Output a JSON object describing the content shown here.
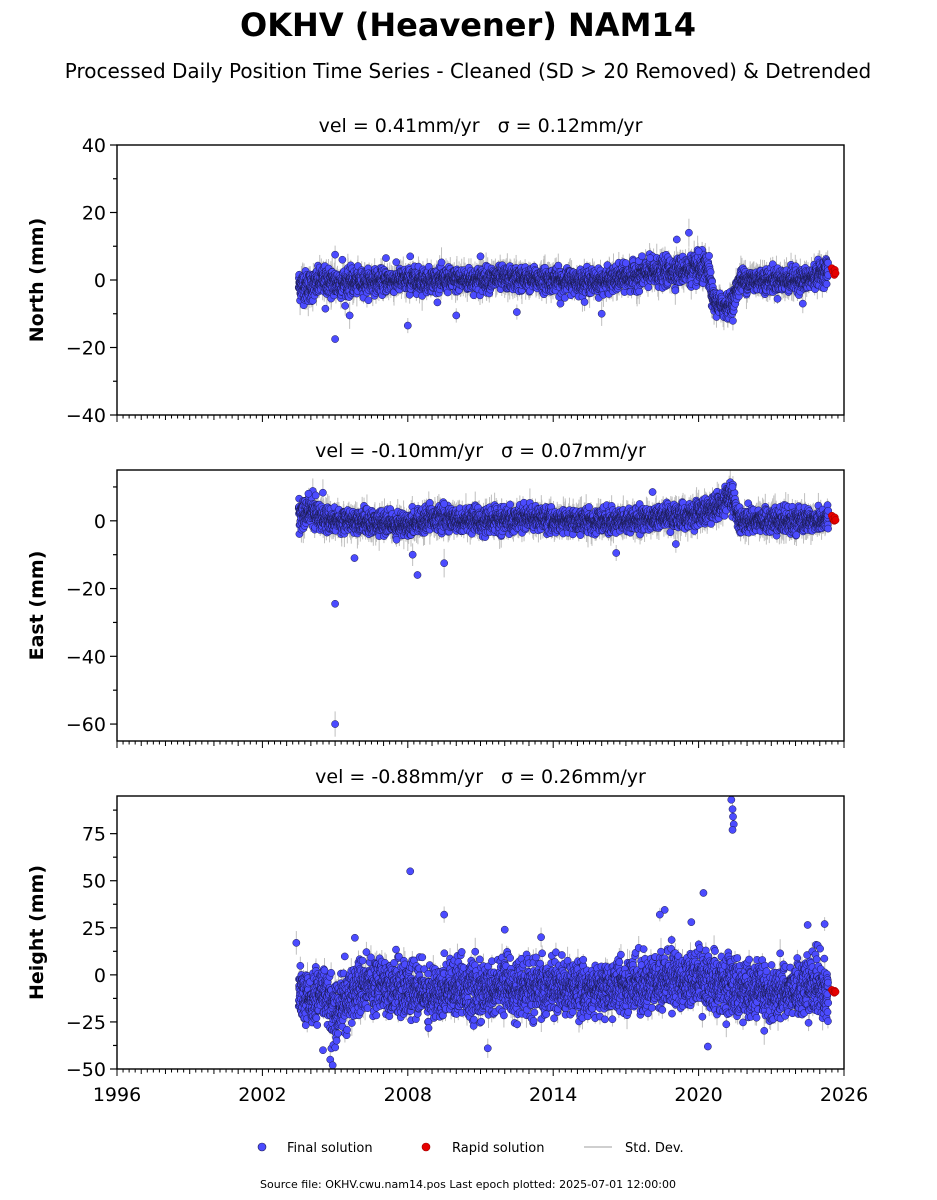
{
  "chart_data": {
    "type": "scatter",
    "title": "OKHV (Heavener) NAM14",
    "subtitle": "Processed Daily Position Time Series - Cleaned (SD > 20 Removed) & Detrended",
    "x_ticks": [
      1996,
      2002,
      2008,
      2014,
      2020,
      2026
    ],
    "xlim": [
      1996,
      2026
    ],
    "panels": [
      {
        "ylabel": "North (mm)",
        "vel_text": "vel = 0.41mm/yr",
        "sigma_text": "σ = 0.12mm/yr",
        "ylim": [
          -40,
          40
        ],
        "y_ticks": [
          -40,
          -20,
          0,
          20,
          40
        ],
        "y_tick_labels": [
          "−40",
          "−20",
          "0",
          "20",
          "40"
        ],
        "band": [
          [
            2003.5,
            -1.5,
            4
          ],
          [
            2004.0,
            -2,
            4
          ],
          [
            2004.5,
            0,
            3.5
          ],
          [
            2005.0,
            -1,
            4
          ],
          [
            2006.0,
            -0.5,
            3
          ],
          [
            2008.0,
            0,
            3
          ],
          [
            2010.0,
            0,
            3
          ],
          [
            2012.0,
            0.5,
            3
          ],
          [
            2014.0,
            0,
            3
          ],
          [
            2016.0,
            -0.5,
            3
          ],
          [
            2018.0,
            2,
            3.5
          ],
          [
            2019.5,
            3,
            3.5
          ],
          [
            2020.4,
            3,
            4
          ],
          [
            2020.6,
            -6,
            3
          ],
          [
            2021.0,
            -8,
            3
          ],
          [
            2021.4,
            -7,
            3
          ],
          [
            2021.7,
            0,
            3
          ],
          [
            2023.0,
            0,
            3
          ],
          [
            2024.5,
            0,
            3
          ],
          [
            2025.0,
            2,
            3
          ],
          [
            2025.35,
            3,
            3
          ]
        ],
        "outliers": [
          [
            2005.0,
            -17.5
          ],
          [
            2005.0,
            7.5
          ],
          [
            2005.3,
            6
          ],
          [
            2005.6,
            -10.5
          ],
          [
            2007.1,
            6.5
          ],
          [
            2008.0,
            -13.5
          ],
          [
            2008.1,
            7
          ],
          [
            2010.0,
            -10.5
          ],
          [
            2011.0,
            7
          ],
          [
            2012.5,
            -9.5
          ],
          [
            2014.3,
            -7
          ],
          [
            2016.0,
            -10
          ],
          [
            2017.0,
            5
          ],
          [
            2018.0,
            6.5
          ],
          [
            2019.1,
            12
          ],
          [
            2019.6,
            14
          ],
          [
            2020.0,
            8.5
          ],
          [
            2024.3,
            -7
          ],
          [
            2004.6,
            -8.5
          ]
        ],
        "rapid": [
          [
            2025.5,
            3.5
          ],
          [
            2025.55,
            2.5
          ],
          [
            2025.6,
            1.5
          ],
          [
            2025.62,
            3
          ],
          [
            2025.65,
            2
          ]
        ]
      },
      {
        "ylabel": "East (mm)",
        "vel_text": "vel = -0.10mm/yr",
        "sigma_text": "σ = 0.07mm/yr",
        "ylim": [
          -65,
          15
        ],
        "y_ticks": [
          -60,
          -40,
          -20,
          0
        ],
        "y_tick_labels": [
          "−60",
          "−40",
          "−20",
          "0"
        ],
        "band": [
          [
            2003.5,
            2,
            3.5
          ],
          [
            2004.0,
            3,
            3.5
          ],
          [
            2004.5,
            1,
            3.5
          ],
          [
            2005.0,
            0,
            3
          ],
          [
            2006.0,
            0,
            3
          ],
          [
            2007.0,
            -1,
            3
          ],
          [
            2008.0,
            -1,
            3
          ],
          [
            2009.0,
            1,
            3
          ],
          [
            2010.0,
            0,
            3
          ],
          [
            2012.0,
            0,
            3
          ],
          [
            2013.0,
            1,
            3
          ],
          [
            2014.0,
            0,
            3
          ],
          [
            2016.0,
            0,
            3
          ],
          [
            2017.5,
            0,
            3
          ],
          [
            2018.0,
            1,
            3
          ],
          [
            2019.0,
            1,
            3
          ],
          [
            2020.0,
            2,
            3
          ],
          [
            2021.0,
            5,
            3.5
          ],
          [
            2021.4,
            7,
            3.5
          ],
          [
            2021.7,
            0,
            3
          ],
          [
            2023.0,
            0,
            3
          ],
          [
            2024.5,
            0,
            3
          ],
          [
            2025.35,
            0.5,
            3
          ]
        ],
        "outliers": [
          [
            2005.0,
            -24.5
          ],
          [
            2005.0,
            -60
          ],
          [
            2005.8,
            -11
          ],
          [
            2008.2,
            -10
          ],
          [
            2008.4,
            -16
          ],
          [
            2009.5,
            -12.5
          ],
          [
            2009.5,
            5
          ],
          [
            2016.6,
            -9.5
          ],
          [
            2018.1,
            8.5
          ],
          [
            2021.4,
            10
          ],
          [
            2003.9,
            8
          ],
          [
            2004.2,
            7.5
          ]
        ],
        "rapid": [
          [
            2025.5,
            1.5
          ],
          [
            2025.55,
            0.5
          ],
          [
            2025.6,
            0
          ],
          [
            2025.62,
            1
          ],
          [
            2025.65,
            0.2
          ]
        ]
      },
      {
        "ylabel": "Height (mm)",
        "vel_text": "vel = -0.88mm/yr",
        "sigma_text": "σ = 0.26mm/yr",
        "ylim": [
          -50,
          95
        ],
        "y_ticks": [
          -50,
          -25,
          0,
          25,
          50,
          75
        ],
        "y_tick_labels": [
          "−50",
          "−25",
          "0",
          "25",
          "50",
          "75"
        ],
        "band": [
          [
            2003.5,
            -10,
            12
          ],
          [
            2004.0,
            -15,
            13
          ],
          [
            2004.5,
            -8,
            12
          ],
          [
            2005.0,
            -20,
            14
          ],
          [
            2006.0,
            -5,
            13
          ],
          [
            2007.0,
            -5,
            13
          ],
          [
            2008.0,
            -8,
            13
          ],
          [
            2009.0,
            -10,
            12
          ],
          [
            2010.0,
            -5,
            12
          ],
          [
            2011.0,
            -10,
            13
          ],
          [
            2012.0,
            -6,
            12
          ],
          [
            2013.0,
            -8,
            12
          ],
          [
            2014.0,
            -6,
            12
          ],
          [
            2015.0,
            -8,
            12
          ],
          [
            2016.0,
            -8,
            12
          ],
          [
            2017.0,
            -5,
            12
          ],
          [
            2018.0,
            -5,
            13
          ],
          [
            2019.0,
            -2,
            13
          ],
          [
            2020.0,
            -3,
            13
          ],
          [
            2021.0,
            -5,
            13
          ],
          [
            2022.0,
            -8,
            13
          ],
          [
            2023.0,
            -10,
            12
          ],
          [
            2024.0,
            -8,
            12
          ],
          [
            2025.0,
            -5,
            14
          ],
          [
            2025.35,
            -10,
            10
          ]
        ],
        "outliers": [
          [
            2008.1,
            55
          ],
          [
            2009.5,
            32
          ],
          [
            2018.6,
            34.5
          ],
          [
            2018.4,
            32
          ],
          [
            2019.7,
            28
          ],
          [
            2020.2,
            43.5
          ],
          [
            2021.35,
            93
          ],
          [
            2021.4,
            88
          ],
          [
            2021.42,
            84
          ],
          [
            2021.45,
            80
          ],
          [
            2021.4,
            77
          ],
          [
            2003.4,
            17
          ],
          [
            2004.5,
            -40
          ],
          [
            2004.8,
            -45
          ],
          [
            2004.9,
            -48
          ],
          [
            2011.3,
            -39
          ],
          [
            2024.5,
            26.5
          ],
          [
            2025.2,
            27
          ],
          [
            2012.0,
            24
          ],
          [
            2013.5,
            20
          ]
        ],
        "rapid": [
          [
            2025.5,
            -8
          ],
          [
            2025.55,
            -9
          ],
          [
            2025.6,
            -9.5
          ],
          [
            2025.62,
            -8.5
          ],
          [
            2025.65,
            -9
          ]
        ]
      }
    ],
    "legend": {
      "placement": "bottom-center",
      "final_label": "Final solution",
      "rapid_label": "Rapid solution",
      "sd_label": "Std. Dev."
    },
    "colors": {
      "final": "#4b4bff",
      "final_edge": "#1a1a4d",
      "rapid": "#e60000",
      "sd": "#bfbfbf"
    },
    "footer": "Source file: OKHV.cwu.nam14.pos  Last epoch plotted: 2025-07-01 12:00:00"
  }
}
